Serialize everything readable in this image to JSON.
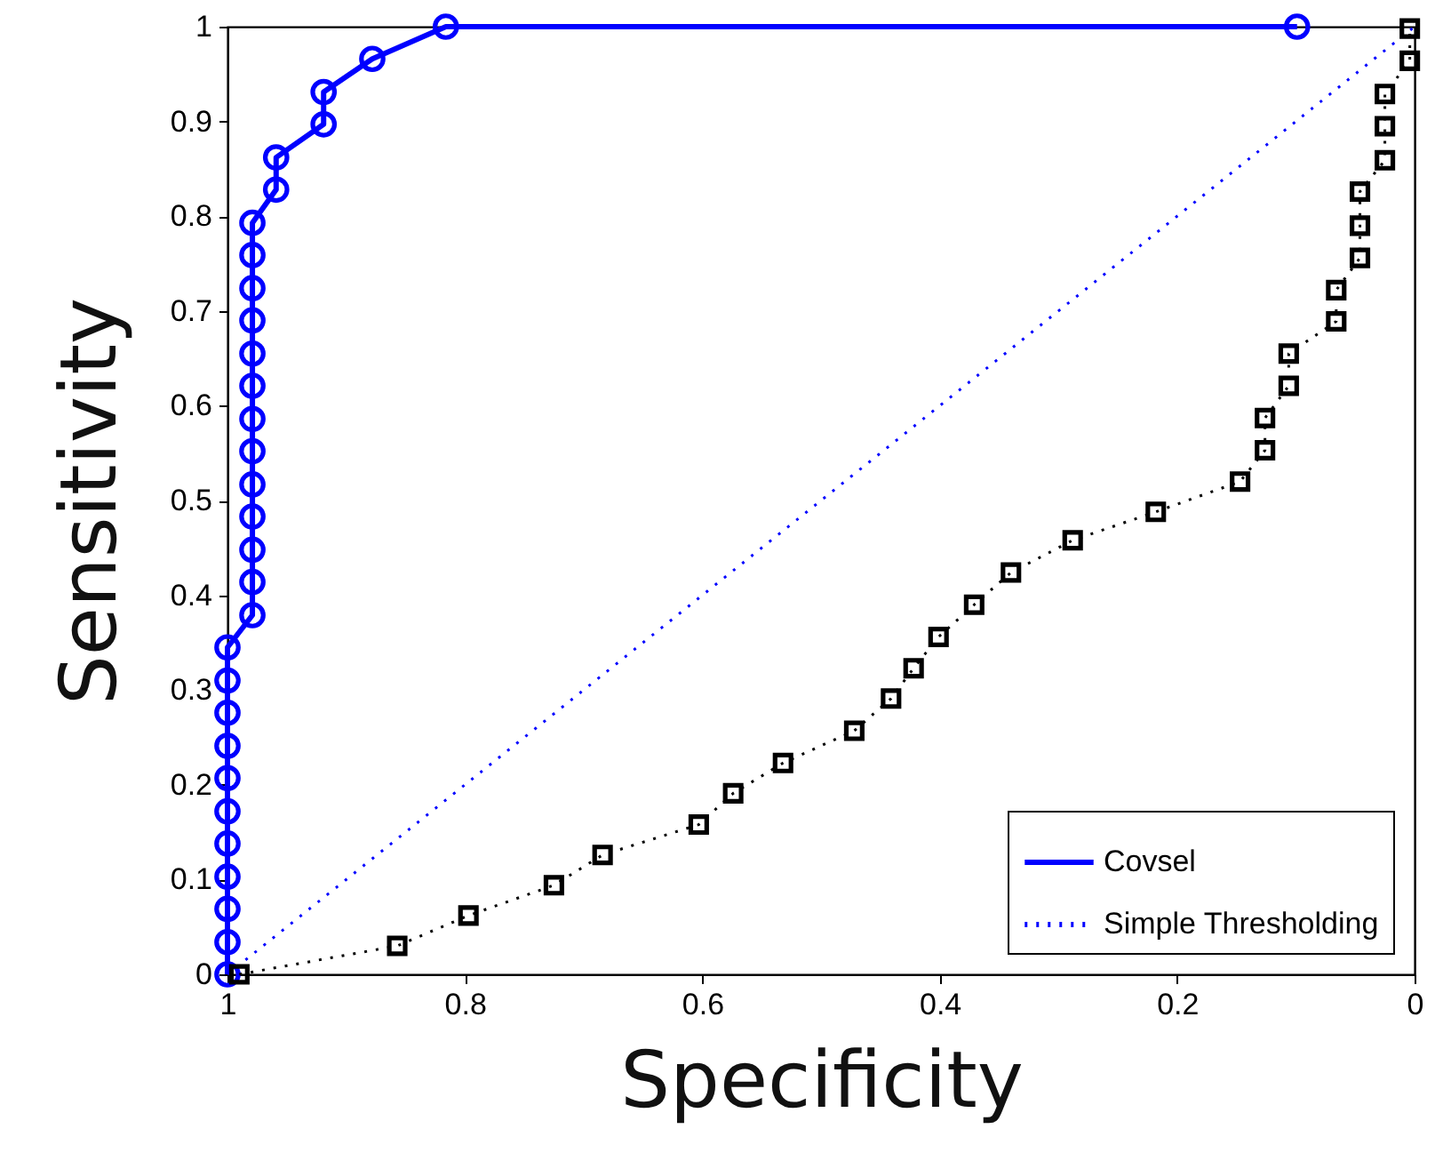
{
  "chart_data": {
    "type": "line",
    "xlabel": "Specificity",
    "ylabel": "Sensitivity",
    "xlim": [
      1,
      0
    ],
    "ylim": [
      0,
      1
    ],
    "xticks": [
      1,
      0.8,
      0.6,
      0.4,
      0.2,
      0
    ],
    "yticks": [
      0,
      0.1,
      0.2,
      0.3,
      0.4,
      0.5,
      0.6,
      0.7,
      0.8,
      0.9,
      1
    ],
    "grid": false,
    "legend": "bottom right",
    "series": [
      {
        "name": "Covsel",
        "color": "#0000ff",
        "marker": "circle",
        "line_style": "solid",
        "x": [
          1,
          1,
          1,
          1,
          1,
          1,
          1,
          1,
          1,
          1,
          1,
          0.979,
          0.979,
          0.979,
          0.979,
          0.979,
          0.979,
          0.979,
          0.979,
          0.979,
          0.979,
          0.979,
          0.979,
          0.979,
          0.959,
          0.959,
          0.919,
          0.919,
          0.878,
          0.816,
          0.099
        ],
        "values": [
          0,
          0.034,
          0.069,
          0.103,
          0.138,
          0.172,
          0.207,
          0.241,
          0.276,
          0.31,
          0.345,
          0.379,
          0.414,
          0.448,
          0.483,
          0.517,
          0.552,
          0.586,
          0.621,
          0.655,
          0.69,
          0.724,
          0.759,
          0.793,
          0.828,
          0.862,
          0.897,
          0.931,
          0.966,
          1,
          1
        ]
      },
      {
        "name": "Simple Thresholding",
        "color": "#0000ff",
        "marker": "none",
        "line_style": "dotted",
        "x": [
          1,
          0
        ],
        "values": [
          0,
          1
        ]
      },
      {
        "color": "#000000",
        "marker": "square",
        "line_style": "dotted",
        "x": [
          0.99,
          0.857,
          0.797,
          0.725,
          0.684,
          0.603,
          0.574,
          0.532,
          0.472,
          0.441,
          0.422,
          0.401,
          0.371,
          0.34,
          0.288,
          0.218,
          0.147,
          0.126,
          0.126,
          0.106,
          0.106,
          0.066,
          0.066,
          0.046,
          0.046,
          0.046,
          0.025,
          0.025,
          0.025,
          0.004,
          0.004
        ],
        "values": [
          0,
          0.03,
          0.062,
          0.094,
          0.126,
          0.158,
          0.191,
          0.223,
          0.257,
          0.291,
          0.323,
          0.356,
          0.39,
          0.424,
          0.458,
          0.488,
          0.52,
          0.553,
          0.587,
          0.621,
          0.655,
          0.689,
          0.722,
          0.756,
          0.79,
          0.826,
          0.859,
          0.895,
          0.929,
          0.964,
          0.998
        ]
      }
    ]
  }
}
